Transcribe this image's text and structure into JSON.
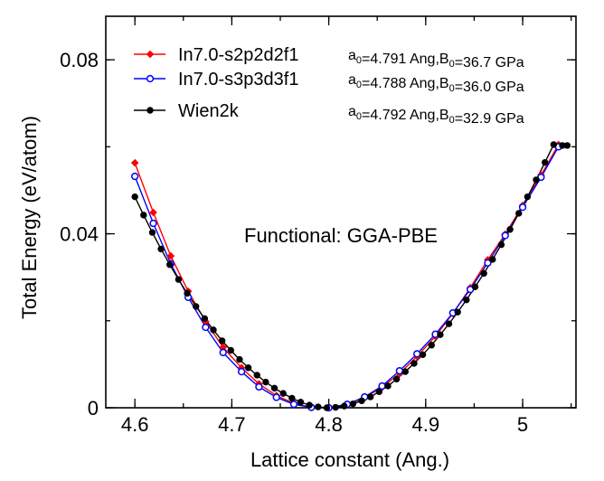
{
  "chart_data": {
    "type": "line",
    "xlabel": "Lattice constant (Ang.)",
    "ylabel": "Total Energy (eV/atom)",
    "xlim": [
      4.57,
      5.055
    ],
    "ylim": [
      0,
      0.09
    ],
    "xticks": [
      4.6,
      4.7,
      4.8,
      4.9,
      5.0
    ],
    "xtick_labels": [
      "4.6",
      "4.7",
      "4.8",
      "4.9",
      "5"
    ],
    "yticks": [
      0,
      0.04,
      0.08
    ],
    "ytick_labels": [
      "0",
      "0.04",
      "0.08"
    ],
    "annotation": "Functional: GGA-PBE",
    "legend_position": "top-left",
    "series": [
      {
        "name": "In7.0-s2p2d2f1",
        "param_prefix": "a",
        "param_sub": "0",
        "param_mid": "=4.791 Ang,B",
        "param_sub2": "0",
        "param_suffix": "=36.7 GPa",
        "color": "#ff0000",
        "marker": "diamond-filled",
        "x": [
          4.6,
          4.619,
          4.637,
          4.655,
          4.673,
          4.691,
          4.71,
          4.728,
          4.746,
          4.764,
          4.782,
          4.8,
          4.819,
          4.837,
          4.855,
          4.873,
          4.891,
          4.91,
          4.928,
          4.946,
          4.964,
          4.982,
          5.0,
          5.019,
          5.037
        ],
        "y": [
          0.0563,
          0.0449,
          0.0349,
          0.0268,
          0.0198,
          0.0139,
          0.0092,
          0.0055,
          0.0028,
          0.001,
          0.0001,
          0.0,
          0.0007,
          0.0023,
          0.0047,
          0.0079,
          0.0118,
          0.0164,
          0.0217,
          0.0276,
          0.034,
          0.0399,
          0.0465,
          0.0535,
          0.0605
        ]
      },
      {
        "name": "In7.0-s3p3d3f1",
        "param_prefix": "a",
        "param_sub": "0",
        "param_mid": "=4.788 Ang,B",
        "param_sub2": "0",
        "param_suffix": "=36.0 GPa",
        "color": "#0000ff",
        "marker": "circle-open",
        "x": [
          4.6,
          4.619,
          4.637,
          4.655,
          4.673,
          4.691,
          4.71,
          4.728,
          4.746,
          4.764,
          4.782,
          4.8,
          4.819,
          4.837,
          4.855,
          4.873,
          4.891,
          4.91,
          4.928,
          4.946,
          4.964,
          4.982,
          5.0,
          5.019,
          5.037
        ],
        "y": [
          0.0532,
          0.0424,
          0.0331,
          0.0254,
          0.0185,
          0.0127,
          0.0083,
          0.0048,
          0.0024,
          0.0008,
          0.0001,
          0.0,
          0.0008,
          0.0025,
          0.005,
          0.0085,
          0.0124,
          0.0169,
          0.0218,
          0.0272,
          0.0333,
          0.0396,
          0.0461,
          0.053,
          0.06
        ]
      },
      {
        "name": "Wien2k",
        "param_prefix": "a",
        "param_sub": "0",
        "param_mid": "=4.792 Ang,B",
        "param_sub2": "0",
        "param_suffix": "=32.9 GPa",
        "color": "#000000",
        "marker": "circle-filled",
        "x": [
          4.6,
          4.609,
          4.618,
          4.627,
          4.636,
          4.645,
          4.654,
          4.663,
          4.672,
          4.681,
          4.69,
          4.699,
          4.708,
          4.717,
          4.726,
          4.735,
          4.744,
          4.753,
          4.762,
          4.771,
          4.78,
          4.789,
          4.798,
          4.807,
          4.816,
          4.825,
          4.834,
          4.843,
          4.852,
          4.861,
          4.87,
          4.879,
          4.888,
          4.897,
          4.906,
          4.915,
          4.924,
          4.933,
          4.942,
          4.951,
          4.96,
          4.969,
          4.978,
          4.987,
          4.996,
          5.005,
          5.014,
          5.023,
          5.032,
          5.041,
          5.046
        ],
        "y": [
          0.0485,
          0.0443,
          0.0403,
          0.0365,
          0.0329,
          0.0295,
          0.0263,
          0.0233,
          0.0205,
          0.0179,
          0.0154,
          0.0132,
          0.0111,
          0.0092,
          0.0075,
          0.0059,
          0.0045,
          0.0033,
          0.0022,
          0.0013,
          0.0006,
          0.0002,
          0.0,
          0.0001,
          0.0004,
          0.0009,
          0.0016,
          0.0025,
          0.0037,
          0.005,
          0.0066,
          0.0083,
          0.0102,
          0.0122,
          0.0144,
          0.0168,
          0.0193,
          0.022,
          0.0248,
          0.0278,
          0.0309,
          0.0341,
          0.0375,
          0.041,
          0.0447,
          0.0485,
          0.0524,
          0.0564,
          0.0605,
          0.0603,
          0.0603
        ]
      }
    ]
  }
}
